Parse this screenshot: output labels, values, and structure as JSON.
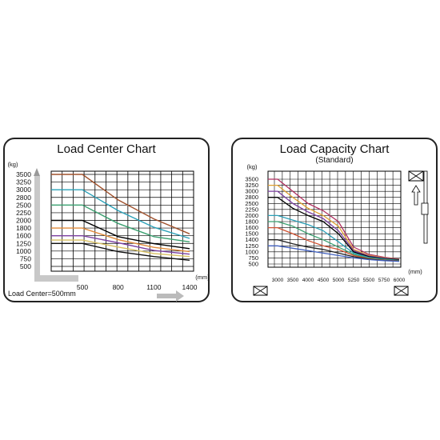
{
  "chart_data": [
    {
      "type": "line",
      "title": "Load Center Chart",
      "ylabel": "(kg)",
      "xlabel": "(mm)",
      "note": "Load Center=500mm",
      "y_ticks": [
        3500,
        3250,
        3000,
        2800,
        2500,
        2250,
        2000,
        1800,
        1600,
        1250,
        1000,
        750,
        500
      ],
      "x_ticks": [
        500,
        800,
        1100,
        1400
      ],
      "x_range": [
        500,
        1400
      ],
      "series": [
        {
          "color": "#a0522d",
          "x": [
            500,
            800,
            1100,
            1400
          ],
          "y": [
            3500,
            2700,
            2050,
            1650
          ]
        },
        {
          "color": "#2aa0b8",
          "x": [
            500,
            800,
            1100,
            1400
          ],
          "y": [
            3000,
            2320,
            1820,
            1480
          ]
        },
        {
          "color": "#3aa070",
          "x": [
            500,
            800,
            1100,
            1400
          ],
          "y": [
            2500,
            1920,
            1560,
            1320
          ]
        },
        {
          "color": "#000000",
          "x": [
            500,
            800,
            1100,
            1400
          ],
          "y": [
            2000,
            1560,
            1240,
            1080
          ]
        },
        {
          "color": "#e08a3a",
          "x": [
            500,
            800,
            1100,
            1400
          ],
          "y": [
            1800,
            1420,
            1120,
            980
          ]
        },
        {
          "color": "#7b3fa0",
          "x": [
            500,
            800,
            1100,
            1400
          ],
          "y": [
            1600,
            1280,
            1020,
            900
          ]
        },
        {
          "color": "#d8c060",
          "x": [
            500,
            800,
            1100,
            1400
          ],
          "y": [
            1400,
            1130,
            920,
            820
          ]
        },
        {
          "color": "#111111",
          "x": [
            500,
            800,
            1100,
            1400
          ],
          "y": [
            1250,
            980,
            820,
            700
          ]
        }
      ]
    },
    {
      "type": "line",
      "title": "Load Capacity Chart",
      "subtitle": "(Standard)",
      "ylabel": "(kg)",
      "xlabel": "(mm)",
      "y_ticks": [
        3500,
        3250,
        3000,
        2800,
        2500,
        2250,
        2000,
        1800,
        1600,
        1500,
        1400,
        1250,
        1000,
        750,
        500
      ],
      "x_ticks": [
        3000,
        3500,
        4000,
        4500,
        5000,
        5250,
        5500,
        5750,
        6000
      ],
      "series": [
        {
          "color": "#b03060",
          "x": [
            3000,
            3500,
            4000,
            4500,
            5000,
            5250,
            5500,
            5750,
            6000
          ],
          "y": [
            3500,
            3000,
            2500,
            2200,
            1800,
            1200,
            900,
            780,
            700
          ]
        },
        {
          "color": "#e0a030",
          "x": [
            3000,
            3500,
            4000,
            4500,
            5000,
            5250,
            5500,
            5750,
            6000
          ],
          "y": [
            3250,
            2800,
            2300,
            2000,
            1650,
            1100,
            860,
            760,
            690
          ]
        },
        {
          "color": "#7b3fa0",
          "x": [
            3000,
            3500,
            4000,
            4500,
            5000,
            5250,
            5500,
            5750,
            6000
          ],
          "y": [
            3000,
            2500,
            2150,
            1900,
            1550,
            1050,
            830,
            740,
            680
          ]
        },
        {
          "color": "#000000",
          "x": [
            3000,
            3500,
            4000,
            4500,
            5000,
            5250,
            5500,
            5750,
            6000
          ],
          "y": [
            2800,
            2300,
            2000,
            1800,
            1500,
            1000,
            800,
            720,
            670
          ]
        },
        {
          "color": "#2aa0b8",
          "x": [
            3000,
            3500,
            4000,
            4500,
            5000,
            5250,
            5500,
            5750,
            6000
          ],
          "y": [
            2000,
            1850,
            1700,
            1550,
            1350,
            950,
            770,
            700,
            650
          ]
        },
        {
          "color": "#3aa070",
          "x": [
            3000,
            3500,
            4000,
            4500,
            5000,
            5250,
            5500,
            5750,
            6000
          ],
          "y": [
            1800,
            1650,
            1500,
            1400,
            1200,
            900,
            740,
            680,
            640
          ]
        },
        {
          "color": "#d05030",
          "x": [
            3000,
            3500,
            4000,
            4500,
            5000,
            5250,
            5500,
            5750,
            6000
          ],
          "y": [
            1600,
            1500,
            1380,
            1250,
            1100,
            850,
            720,
            660,
            630
          ]
        },
        {
          "color": "#222222",
          "x": [
            3000,
            3500,
            4000,
            4500,
            5000,
            5250,
            5500,
            5750,
            6000
          ],
          "y": [
            1400,
            1300,
            1200,
            1100,
            950,
            800,
            700,
            650,
            620
          ]
        },
        {
          "color": "#4060c0",
          "x": [
            3000,
            3500,
            4000,
            4500,
            5000,
            5250,
            5500,
            5750,
            6000
          ],
          "y": [
            1250,
            1150,
            1050,
            950,
            850,
            750,
            680,
            640,
            610
          ]
        }
      ]
    }
  ]
}
